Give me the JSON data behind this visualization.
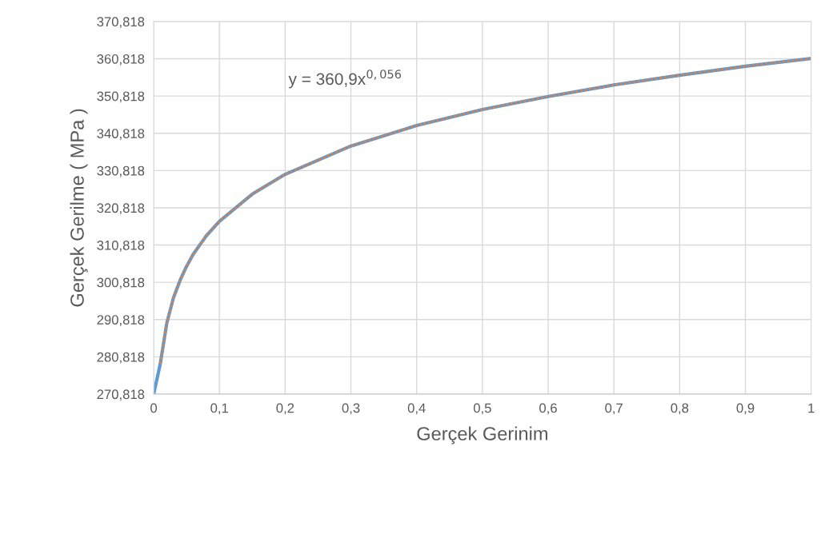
{
  "chart_data": {
    "type": "line",
    "xlabel": "Gerçek Gerinim",
    "ylabel": "Gerçek Gerilme ( MPa )",
    "annotations": [
      "y = 360,9x$^{0,056}$"
    ],
    "series": [
      {
        "color": "#5b9bd5",
        "line_style": "solid",
        "x": [
          0,
          0.01,
          0.02,
          0.03,
          0.04,
          0.05,
          0.06,
          0.08,
          0.1,
          0.15,
          0.2,
          0.3,
          0.4,
          0.5,
          0.6,
          0.7,
          0.8,
          0.9,
          1
        ],
        "values": [
          270.818,
          278.9,
          289.9,
          296.6,
          301.3,
          305.1,
          308.3,
          313.3,
          317.2,
          324.5,
          329.8,
          337.4,
          342.9,
          347.2,
          350.7,
          353.8,
          356.4,
          358.8,
          360.9
        ]
      },
      {
        "color": "#ed7d31",
        "line_style": "dotted",
        "x": [
          0.01,
          0.02,
          0.03,
          0.04,
          0.05,
          0.06,
          0.08,
          0.1,
          0.15,
          0.2,
          0.3,
          0.4,
          0.5,
          0.6,
          0.7,
          0.8,
          0.9,
          1
        ],
        "values": [
          278.9,
          289.9,
          296.6,
          301.3,
          305.1,
          308.3,
          313.3,
          317.2,
          324.5,
          329.8,
          337.4,
          342.9,
          347.2,
          350.7,
          353.8,
          356.4,
          358.8,
          360.9
        ]
      }
    ],
    "xlim": [
      0,
      1
    ],
    "xticks": [
      0,
      {
        "value": 0.1,
        "label": "0,1"
      },
      {
        "value": 0.2,
        "label": "0,2"
      },
      {
        "value": 0.3,
        "label": "0,3"
      },
      {
        "value": 0.4,
        "label": "0,4"
      },
      {
        "value": 0.5,
        "label": "0,5"
      },
      {
        "value": 0.6,
        "label": "0,6"
      },
      {
        "value": 0.7,
        "label": "0,7"
      },
      {
        "value": 0.8,
        "label": "0,8"
      },
      {
        "value": 0.9,
        "label": "0,9"
      },
      1
    ],
    "ylim": [
      270.818,
      370.818
    ],
    "yticks": [
      {
        "value": 270.818,
        "label": "270,818"
      },
      {
        "value": 280.818,
        "label": "280,818"
      },
      {
        "value": 290.818,
        "label": "290,818"
      },
      {
        "value": 300.818,
        "label": "300,818"
      },
      {
        "value": 310.818,
        "label": "310,818"
      },
      {
        "value": 320.818,
        "label": "320,818"
      },
      {
        "value": 330.818,
        "label": "330,818"
      },
      {
        "value": 340.818,
        "label": "340,818"
      },
      {
        "value": 350.818,
        "label": "350,818"
      },
      {
        "value": 360.818,
        "label": "360,818"
      },
      {
        "value": 370.818,
        "label": "370,818"
      }
    ],
    "grid": true
  }
}
